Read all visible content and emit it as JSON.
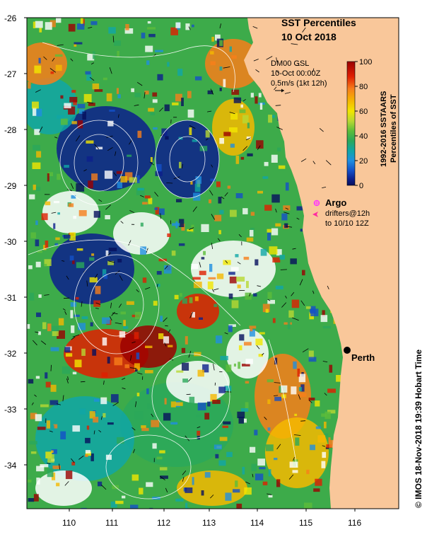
{
  "title": {
    "line1": "SST Percentiles",
    "line2": "10 Oct 2018"
  },
  "current_info": {
    "model": "DM00 GSL",
    "time": "10-Oct 00:00Z",
    "scale": "0.5m/s (1kt 12h)"
  },
  "colorbar": {
    "ticks": [
      "100",
      "80",
      "60",
      "40",
      "20",
      "0"
    ],
    "label_line1": "1992-2016 SSTAARS",
    "label_line2": "Percentiles of SST",
    "colors": [
      "#9b0000",
      "#e01e00",
      "#f77e1a",
      "#f5b800",
      "#f2e600",
      "#b8d832",
      "#5cbd3a",
      "#2aa85a",
      "#10a6a6",
      "#1f8fe0",
      "#1450c8",
      "#0c1f8c",
      "#060f5c"
    ]
  },
  "legend": {
    "argo_label": "Argo",
    "drifters_line1": "drifters@12h",
    "drifters_line2": "to 10/10 12Z",
    "argo_color": "#ff33ff",
    "drifter_color": "#ff2aa0"
  },
  "axes": {
    "y_labels": [
      "-26",
      "-27",
      "-28",
      "-29",
      "-30",
      "-31",
      "-32",
      "-33",
      "-34"
    ],
    "x_labels": [
      "110",
      "111",
      "112",
      "113",
      "114",
      "115",
      "116"
    ]
  },
  "place": {
    "name": "Perth"
  },
  "copyright": "© IMOS 18-Nov-2018 19:39 Hobart Time",
  "colors": {
    "land": "#f9c79a",
    "deep_blue": "#0c1f8c",
    "green": "#2aa85a",
    "orange": "#f77e1a"
  }
}
